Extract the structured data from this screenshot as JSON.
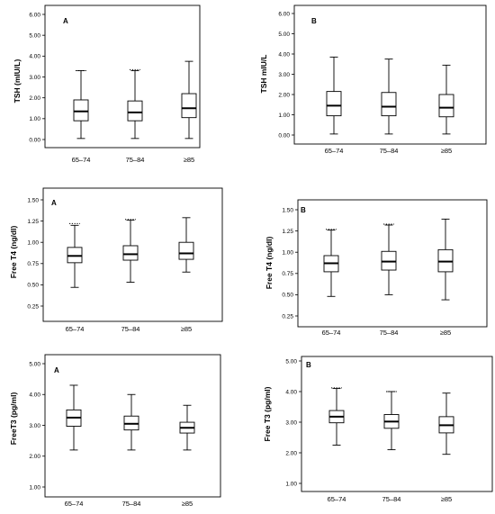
{
  "chart_data": [
    {
      "type": "box",
      "panel_label": "A",
      "ylabel": "TSH (mIU/L)",
      "categories": [
        "65–74",
        "75–84",
        "≥85"
      ],
      "ylim": [
        0,
        6
      ],
      "yticks": [
        "0.00",
        "1.00",
        "2.00",
        "3.00",
        "4.00",
        "5.00",
        "6.00"
      ],
      "boxes": [
        {
          "min": 0.05,
          "q1": 0.9,
          "median": 1.35,
          "q3": 1.9,
          "max": 3.3,
          "extreme": 3.3
        },
        {
          "min": 0.05,
          "q1": 0.9,
          "median": 1.3,
          "q3": 1.85,
          "max": 3.3,
          "extreme": 3.35
        },
        {
          "min": 0.05,
          "q1": 1.05,
          "median": 1.5,
          "q3": 2.2,
          "max": 3.75,
          "extreme": null
        }
      ]
    },
    {
      "type": "box",
      "panel_label": "B",
      "ylabel": "TSH mIU/L",
      "categories": [
        "65–74",
        "75–84",
        "≥85"
      ],
      "ylim": [
        0,
        6
      ],
      "yticks": [
        "0.00",
        "1.00",
        "2.00",
        "3.00",
        "4.00",
        "5.00",
        "6.00"
      ],
      "boxes": [
        {
          "min": 0.05,
          "q1": 0.95,
          "median": 1.45,
          "q3": 2.15,
          "max": 3.85,
          "extreme": null
        },
        {
          "min": 0.05,
          "q1": 0.95,
          "median": 1.4,
          "q3": 2.1,
          "max": 3.75,
          "extreme": null
        },
        {
          "min": 0.05,
          "q1": 0.9,
          "median": 1.35,
          "q3": 2.0,
          "max": 3.45,
          "extreme": null
        }
      ]
    },
    {
      "type": "box",
      "panel_label": "A",
      "ylabel": "Free T4 (ng/dl)",
      "categories": [
        "65–74",
        "75–84",
        "≥85"
      ],
      "ylim": [
        0.15,
        1.55
      ],
      "yticks": [
        "0.25",
        "0.50",
        "0.75",
        "1.00",
        "1.25",
        "1.50"
      ],
      "boxes": [
        {
          "min": 0.47,
          "q1": 0.76,
          "median": 0.84,
          "q3": 0.94,
          "max": 1.2,
          "extreme": 1.22
        },
        {
          "min": 0.53,
          "q1": 0.79,
          "median": 0.86,
          "q3": 0.96,
          "max": 1.26,
          "extreme": 1.27
        },
        {
          "min": 0.65,
          "q1": 0.8,
          "median": 0.87,
          "q3": 1.0,
          "max": 1.29,
          "extreme": null
        }
      ]
    },
    {
      "type": "box",
      "panel_label": "B",
      "ylabel": "Free T4 (ng/dl)",
      "categories": [
        "65–74",
        "75–84",
        "≥85"
      ],
      "ylim": [
        0.15,
        1.55
      ],
      "yticks": [
        "0.25",
        "0.50",
        "0.75",
        "1.00",
        "1.25",
        "1.50"
      ],
      "boxes": [
        {
          "min": 0.48,
          "q1": 0.77,
          "median": 0.87,
          "q3": 0.96,
          "max": 1.26,
          "extreme": 1.27
        },
        {
          "min": 0.5,
          "q1": 0.79,
          "median": 0.89,
          "q3": 1.01,
          "max": 1.32,
          "extreme": 1.33
        },
        {
          "min": 0.44,
          "q1": 0.77,
          "median": 0.89,
          "q3": 1.03,
          "max": 1.39,
          "extreme": null
        }
      ]
    },
    {
      "type": "box",
      "panel_label": "A",
      "ylabel": "FreeT3 (pg/ml)",
      "categories": [
        "65–74",
        "75–84",
        "≥85"
      ],
      "ylim": [
        0.85,
        5.15
      ],
      "yticks": [
        "1.00",
        "2.00",
        "3.00",
        "4.00",
        "5.00"
      ],
      "boxes": [
        {
          "min": 2.2,
          "q1": 2.97,
          "median": 3.25,
          "q3": 3.5,
          "max": 4.3,
          "extreme": null
        },
        {
          "min": 2.2,
          "q1": 2.85,
          "median": 3.05,
          "q3": 3.3,
          "max": 4.0,
          "extreme": null
        },
        {
          "min": 2.2,
          "q1": 2.75,
          "median": 2.92,
          "q3": 3.1,
          "max": 3.65,
          "extreme": null
        }
      ]
    },
    {
      "type": "box",
      "panel_label": "B",
      "ylabel": "Free T3 (pg/ml)",
      "categories": [
        "65–74",
        "75–84",
        "≥85"
      ],
      "ylim": [
        0.85,
        5.15
      ],
      "yticks": [
        "1.00",
        "2.00",
        "3.00",
        "4.00",
        "5.00"
      ],
      "boxes": [
        {
          "min": 2.25,
          "q1": 2.98,
          "median": 3.18,
          "q3": 3.38,
          "max": 4.1,
          "extreme": 4.12
        },
        {
          "min": 2.1,
          "q1": 2.8,
          "median": 3.02,
          "q3": 3.25,
          "max": 4.0,
          "extreme": 4.0
        },
        {
          "min": 1.95,
          "q1": 2.65,
          "median": 2.9,
          "q3": 3.18,
          "max": 3.95,
          "extreme": null
        }
      ]
    }
  ]
}
